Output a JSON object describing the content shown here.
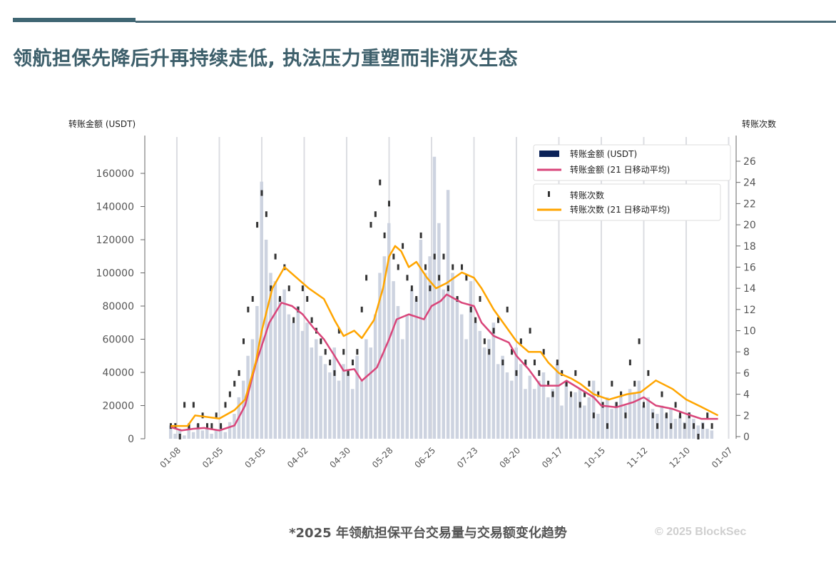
{
  "header": {
    "title": "领航担保先降后升再持续走低, 执法压力重塑而非消灭生态"
  },
  "footer": {
    "caption": "*2025 年领航担保平台交易量与交易额变化趋势",
    "copyright": "© 2025 BlockSec"
  },
  "colors": {
    "bars": "#cdd3e0",
    "count_marks": "#333333",
    "amount_ma": "#d9457a",
    "count_ma": "#ffa500",
    "grid": "#dcdde2",
    "axis": "#666666",
    "legend_bar": "#0b2258"
  },
  "chart_data": {
    "type": "bar+line",
    "ylabel": "转账金额 (USDT)",
    "y2label": "转账次数",
    "ylim": [
      0,
      160000
    ],
    "y2lim": [
      0,
      26
    ],
    "yticks": [
      0,
      20000,
      40000,
      60000,
      80000,
      100000,
      120000,
      140000,
      160000
    ],
    "y2ticks": [
      0,
      2,
      4,
      6,
      8,
      10,
      12,
      14,
      16,
      18,
      20,
      22,
      24,
      26
    ],
    "xticks": [
      {
        "day": 7,
        "label": "01-08"
      },
      {
        "day": 35,
        "label": "02-05"
      },
      {
        "day": 63,
        "label": "03-05"
      },
      {
        "day": 91,
        "label": "04-02"
      },
      {
        "day": 119,
        "label": "04-30"
      },
      {
        "day": 147,
        "label": "05-28"
      },
      {
        "day": 175,
        "label": "06-25"
      },
      {
        "day": 203,
        "label": "07-23"
      },
      {
        "day": 231,
        "label": "08-20"
      },
      {
        "day": 259,
        "label": "09-17"
      },
      {
        "day": 287,
        "label": "10-15"
      },
      {
        "day": 315,
        "label": "11-12"
      },
      {
        "day": 343,
        "label": "12-10"
      },
      {
        "day": 371,
        "label": "01-07"
      }
    ],
    "legend": {
      "position": "top-right",
      "entries": [
        "转账金额 (USDT)",
        "转账金额 (21 日移动平均)",
        "转账次数",
        "转账次数 (21 日移动平均)"
      ]
    },
    "sample_start_day": 3,
    "sample_step_days": 3,
    "amount_k": [
      8,
      3,
      6,
      2,
      7,
      4,
      9,
      5,
      6,
      3,
      5,
      8,
      4,
      10,
      15,
      25,
      35,
      50,
      60,
      80,
      155,
      120,
      100,
      95,
      85,
      90,
      75,
      70,
      80,
      65,
      70,
      55,
      60,
      50,
      45,
      40,
      55,
      35,
      45,
      40,
      30,
      50,
      35,
      60,
      55,
      75,
      100,
      110,
      130,
      95,
      80,
      60,
      75,
      90,
      85,
      120,
      100,
      110,
      170,
      130,
      90,
      150,
      100,
      85,
      75,
      60,
      95,
      70,
      65,
      55,
      60,
      70,
      45,
      50,
      40,
      35,
      55,
      45,
      30,
      38,
      30,
      35,
      40,
      25,
      30,
      45,
      20,
      35,
      25,
      28,
      30,
      20,
      25,
      35,
      15,
      20,
      25,
      18,
      22,
      25,
      20,
      30,
      28,
      35,
      20,
      25,
      18,
      15,
      20,
      15,
      18,
      12,
      14,
      10,
      16,
      12,
      8,
      10,
      6,
      5
    ],
    "counts": [
      1,
      1,
      0,
      3,
      1,
      3,
      1,
      2,
      1,
      1,
      2,
      1,
      3,
      4,
      5,
      6,
      9,
      12,
      13,
      20,
      23,
      21,
      14,
      17,
      13,
      16,
      14,
      11,
      12,
      14,
      13,
      11,
      10,
      9,
      8,
      7,
      6,
      10,
      8,
      6,
      7,
      8,
      12,
      15,
      20,
      21,
      24,
      19,
      22,
      17,
      16,
      18,
      15,
      14,
      13,
      19,
      16,
      14,
      17,
      15,
      17,
      14,
      16,
      13,
      16,
      15,
      12,
      11,
      13,
      9,
      8,
      10,
      11,
      7,
      12,
      8,
      6,
      9,
      7,
      10,
      7,
      6,
      8,
      5,
      4,
      7,
      6,
      5,
      4,
      6,
      3,
      4,
      5,
      2,
      4,
      3,
      1,
      5,
      3,
      4,
      2,
      7,
      5,
      9,
      3,
      6,
      2,
      1,
      4,
      2,
      1,
      3,
      2,
      1,
      2,
      1,
      0,
      1,
      2,
      1
    ],
    "amount_ma": [
      [
        3,
        7000
      ],
      [
        10,
        5000
      ],
      [
        18,
        6000
      ],
      [
        25,
        6500
      ],
      [
        35,
        5000
      ],
      [
        45,
        8000
      ],
      [
        52,
        20000
      ],
      [
        59,
        45000
      ],
      [
        68,
        70000
      ],
      [
        76,
        82000
      ],
      [
        83,
        80000
      ],
      [
        90,
        75000
      ],
      [
        97,
        67000
      ],
      [
        104,
        60000
      ],
      [
        111,
        50000
      ],
      [
        117,
        41000
      ],
      [
        124,
        42000
      ],
      [
        129,
        35000
      ],
      [
        139,
        43000
      ],
      [
        147,
        60000
      ],
      [
        152,
        72000
      ],
      [
        160,
        75000
      ],
      [
        170,
        72000
      ],
      [
        175,
        80000
      ],
      [
        181,
        83000
      ],
      [
        185,
        87000
      ],
      [
        195,
        82000
      ],
      [
        203,
        80000
      ],
      [
        208,
        70000
      ],
      [
        216,
        62000
      ],
      [
        226,
        58000
      ],
      [
        231,
        50000
      ],
      [
        239,
        42000
      ],
      [
        247,
        32000
      ],
      [
        259,
        32000
      ],
      [
        264,
        35000
      ],
      [
        273,
        30000
      ],
      [
        282,
        25000
      ],
      [
        287,
        20000
      ],
      [
        297,
        19000
      ],
      [
        308,
        22000
      ],
      [
        315,
        25000
      ],
      [
        323,
        20000
      ],
      [
        334,
        18000
      ],
      [
        343,
        15000
      ],
      [
        353,
        12000
      ],
      [
        364,
        12000
      ]
    ],
    "count_ma": [
      [
        3,
        1
      ],
      [
        14,
        1
      ],
      [
        19,
        2
      ],
      [
        35,
        1.7
      ],
      [
        45,
        2.5
      ],
      [
        52,
        3.5
      ],
      [
        59,
        7
      ],
      [
        63,
        10
      ],
      [
        70,
        14
      ],
      [
        78,
        16
      ],
      [
        86,
        15
      ],
      [
        94,
        14
      ],
      [
        104,
        13
      ],
      [
        111,
        11
      ],
      [
        117,
        9.5
      ],
      [
        124,
        10
      ],
      [
        129,
        9.3
      ],
      [
        137,
        11
      ],
      [
        143,
        14
      ],
      [
        147,
        17
      ],
      [
        151,
        18
      ],
      [
        155,
        17.5
      ],
      [
        160,
        16
      ],
      [
        165,
        16.5
      ],
      [
        172,
        15
      ],
      [
        178,
        14
      ],
      [
        185,
        14.5
      ],
      [
        195,
        15.5
      ],
      [
        203,
        15
      ],
      [
        208,
        14
      ],
      [
        216,
        12
      ],
      [
        226,
        10
      ],
      [
        231,
        9
      ],
      [
        239,
        8
      ],
      [
        247,
        8
      ],
      [
        252,
        7
      ],
      [
        259,
        6
      ],
      [
        267,
        5.5
      ],
      [
        273,
        5
      ],
      [
        282,
        4
      ],
      [
        292,
        3.5
      ],
      [
        304,
        4
      ],
      [
        313,
        4.2
      ],
      [
        323,
        5.3
      ],
      [
        334,
        4.5
      ],
      [
        343,
        3.5
      ],
      [
        353,
        2.8
      ],
      [
        364,
        2
      ]
    ]
  }
}
